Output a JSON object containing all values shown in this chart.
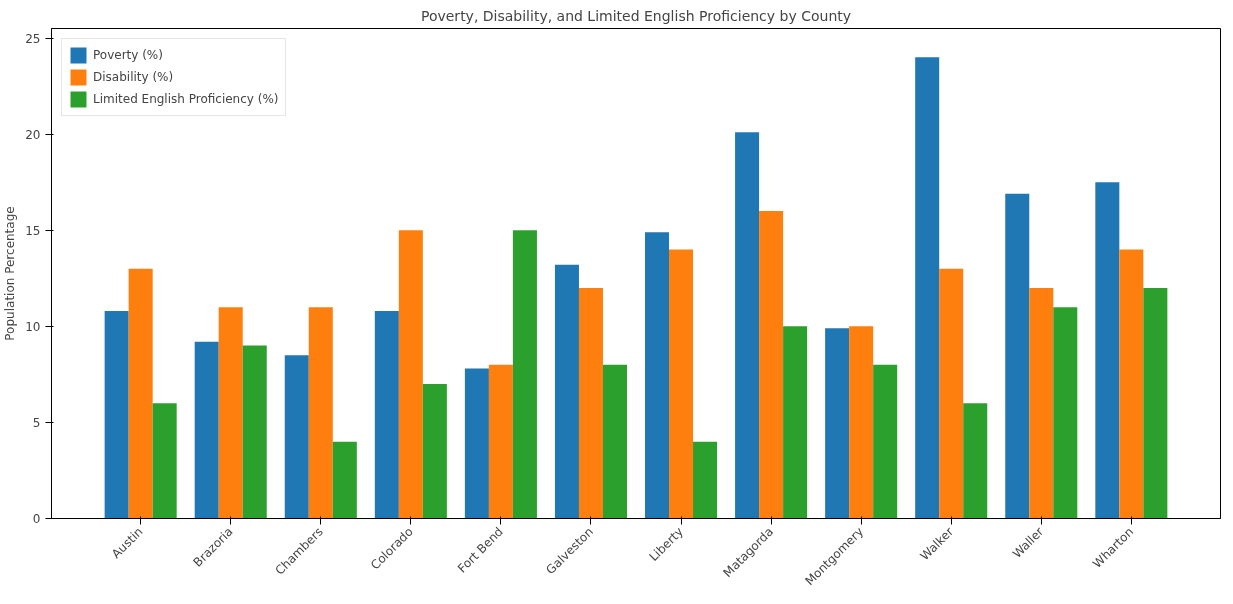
{
  "chart_data": {
    "type": "bar",
    "title": "Poverty, Disability, and Limited English Proficiency by County",
    "ylabel": "Population Percentage",
    "categories": [
      "Austin",
      "Brazoria",
      "Chambers",
      "Colorado",
      "Fort Bend",
      "Galveston",
      "Liberty",
      "Matagorda",
      "Montgomery",
      "Walker",
      "Waller",
      "Wharton"
    ],
    "series": [
      {
        "name": "Poverty (%)",
        "color": "#1f77b4",
        "values": [
          10.8,
          9.2,
          8.5,
          10.8,
          7.8,
          13.2,
          14.9,
          20.1,
          9.9,
          24.0,
          16.9,
          17.5
        ]
      },
      {
        "name": "Disability (%)",
        "color": "#ff7f0e",
        "values": [
          13,
          11,
          11,
          15,
          8,
          12,
          14,
          16,
          10,
          13,
          12,
          14
        ]
      },
      {
        "name": "Limited English Proficiency (%)",
        "color": "#2ca02c",
        "values": [
          6,
          9,
          4,
          7,
          15,
          8,
          4,
          10,
          8,
          6,
          11,
          12
        ]
      }
    ],
    "ylim": [
      0,
      25.5
    ],
    "yticks": [
      0,
      5,
      10,
      15,
      20,
      25
    ],
    "grid": false,
    "legend": "top left"
  }
}
